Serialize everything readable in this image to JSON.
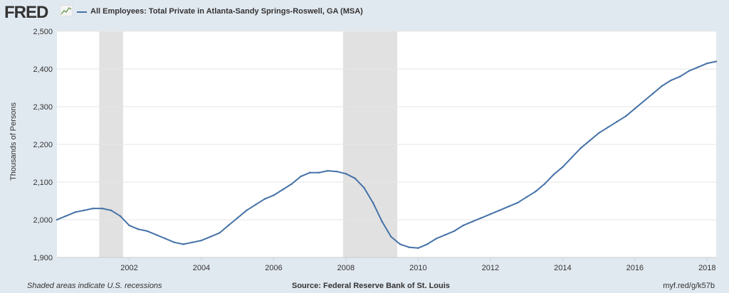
{
  "logo": {
    "text": "FRED"
  },
  "header": {
    "title": "All Employees: Total Private in Atlanta-Sandy Springs-Roswell, GA (MSA)"
  },
  "footer": {
    "recession_note": "Shaded areas indicate U.S. recessions",
    "source": "Source: Federal Reserve Bank of St. Louis",
    "short_url": "myf.red/g/k57b"
  },
  "colors": {
    "series": "#4572a7",
    "recession": "#e1e1e1",
    "frame": "#e1e9f0",
    "grid": "#e6e6e6"
  },
  "icons": {
    "logo_mark": "line-chart-icon"
  },
  "chart_data": {
    "type": "line",
    "title": "All Employees: Total Private in Atlanta-Sandy Springs-Roswell, GA (MSA)",
    "xlabel": "",
    "ylabel": "Thousands of Persons",
    "xlim": [
      2000.0,
      2018.25
    ],
    "ylim": [
      1900,
      2500
    ],
    "x_ticks": [
      "2002",
      "2004",
      "2006",
      "2008",
      "2010",
      "2012",
      "2014",
      "2016",
      "2018"
    ],
    "y_ticks": [
      "1,900",
      "2,000",
      "2,100",
      "2,200",
      "2,300",
      "2,400",
      "2,500"
    ],
    "grid": true,
    "legend": "top-left",
    "recessions": [
      [
        2001.17,
        2001.83
      ],
      [
        2007.92,
        2009.42
      ]
    ],
    "series": [
      {
        "name": "All Employees: Total Private in Atlanta-Sandy Springs-Roswell, GA (MSA)",
        "x": [
          2000.0,
          2000.25,
          2000.5,
          2000.75,
          2001.0,
          2001.25,
          2001.5,
          2001.75,
          2002.0,
          2002.25,
          2002.5,
          2002.75,
          2003.0,
          2003.25,
          2003.5,
          2003.75,
          2004.0,
          2004.25,
          2004.5,
          2004.75,
          2005.0,
          2005.25,
          2005.5,
          2005.75,
          2006.0,
          2006.25,
          2006.5,
          2006.75,
          2007.0,
          2007.25,
          2007.5,
          2007.75,
          2008.0,
          2008.25,
          2008.5,
          2008.75,
          2009.0,
          2009.25,
          2009.5,
          2009.75,
          2010.0,
          2010.25,
          2010.5,
          2010.75,
          2011.0,
          2011.25,
          2011.5,
          2011.75,
          2012.0,
          2012.25,
          2012.5,
          2012.75,
          2013.0,
          2013.25,
          2013.5,
          2013.75,
          2014.0,
          2014.25,
          2014.5,
          2014.75,
          2015.0,
          2015.25,
          2015.5,
          2015.75,
          2016.0,
          2016.25,
          2016.5,
          2016.75,
          2017.0,
          2017.25,
          2017.5,
          2017.75,
          2018.0,
          2018.25
        ],
        "values": [
          2000,
          2010,
          2020,
          2025,
          2030,
          2030,
          2025,
          2010,
          1985,
          1975,
          1970,
          1960,
          1950,
          1940,
          1935,
          1940,
          1945,
          1955,
          1965,
          1985,
          2005,
          2025,
          2040,
          2055,
          2065,
          2080,
          2095,
          2115,
          2125,
          2125,
          2130,
          2128,
          2122,
          2110,
          2085,
          2045,
          1995,
          1955,
          1935,
          1927,
          1925,
          1935,
          1950,
          1960,
          1970,
          1985,
          1995,
          2005,
          2015,
          2025,
          2035,
          2045,
          2060,
          2075,
          2095,
          2120,
          2140,
          2165,
          2190,
          2210,
          2230,
          2245,
          2260,
          2275,
          2295,
          2315,
          2335,
          2355,
          2370,
          2380,
          2395,
          2405,
          2415,
          2420
        ]
      }
    ]
  }
}
